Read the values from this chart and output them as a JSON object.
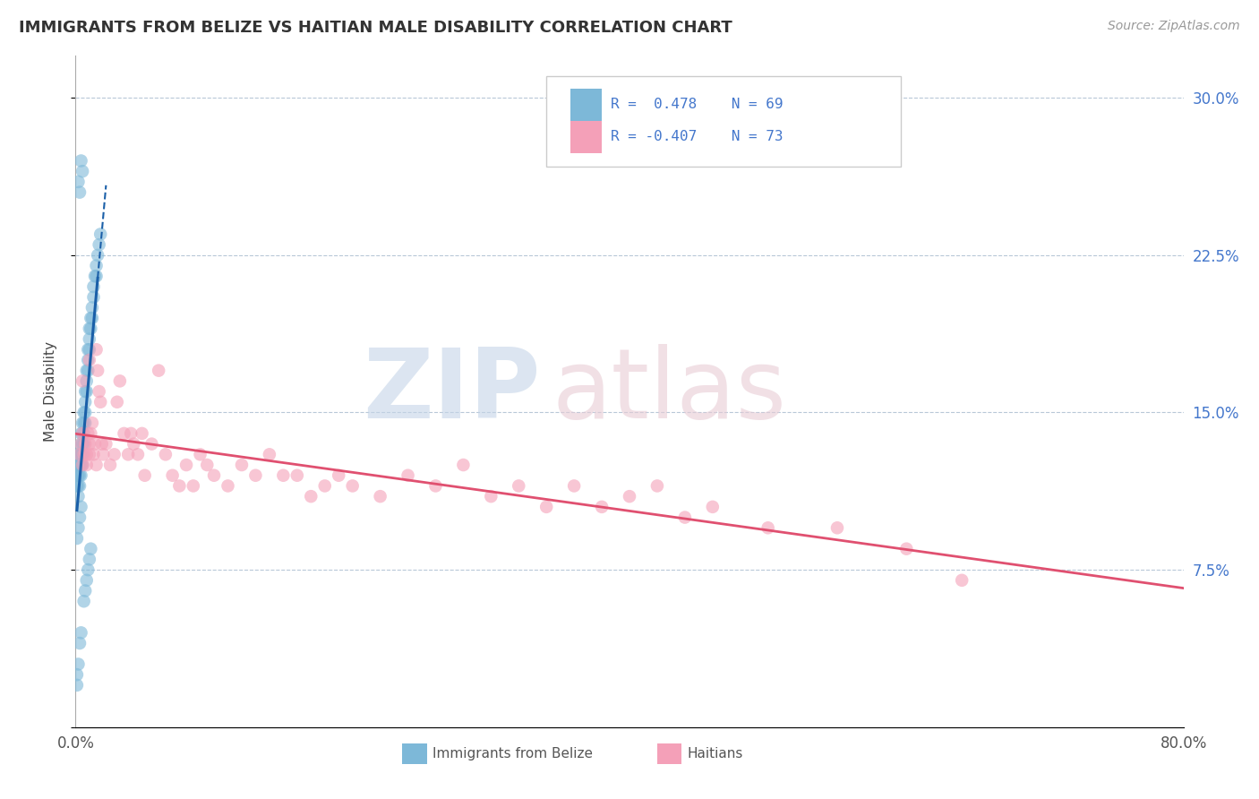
{
  "title": "IMMIGRANTS FROM BELIZE VS HAITIAN MALE DISABILITY CORRELATION CHART",
  "source": "Source: ZipAtlas.com",
  "ylabel": "Male Disability",
  "yticks": [
    0.0,
    0.075,
    0.15,
    0.225,
    0.3
  ],
  "xlim": [
    0.0,
    0.8
  ],
  "ylim": [
    0.0,
    0.32
  ],
  "blue_color": "#7db8d8",
  "pink_color": "#f4a0b8",
  "blue_line_color": "#1a5fa8",
  "pink_line_color": "#e05070",
  "legend_text1": "R =  0.478    N = 69",
  "legend_text2": "R = -0.407    N = 73",
  "blue_x": [
    0.001,
    0.001,
    0.001,
    0.002,
    0.002,
    0.002,
    0.002,
    0.003,
    0.003,
    0.003,
    0.003,
    0.004,
    0.004,
    0.004,
    0.004,
    0.004,
    0.005,
    0.005,
    0.005,
    0.005,
    0.005,
    0.006,
    0.006,
    0.006,
    0.006,
    0.007,
    0.007,
    0.007,
    0.007,
    0.008,
    0.008,
    0.008,
    0.009,
    0.009,
    0.009,
    0.01,
    0.01,
    0.01,
    0.011,
    0.011,
    0.012,
    0.012,
    0.013,
    0.013,
    0.014,
    0.015,
    0.015,
    0.016,
    0.017,
    0.018,
    0.002,
    0.003,
    0.004,
    0.005,
    0.006,
    0.007,
    0.008,
    0.009,
    0.01,
    0.011,
    0.001,
    0.002,
    0.003,
    0.004,
    0.003,
    0.004,
    0.002,
    0.001,
    0.001
  ],
  "blue_y": [
    0.12,
    0.115,
    0.13,
    0.125,
    0.12,
    0.115,
    0.11,
    0.13,
    0.125,
    0.12,
    0.115,
    0.14,
    0.135,
    0.13,
    0.125,
    0.12,
    0.145,
    0.14,
    0.135,
    0.13,
    0.125,
    0.15,
    0.145,
    0.14,
    0.135,
    0.16,
    0.155,
    0.15,
    0.145,
    0.17,
    0.165,
    0.16,
    0.18,
    0.175,
    0.17,
    0.19,
    0.185,
    0.18,
    0.195,
    0.19,
    0.2,
    0.195,
    0.21,
    0.205,
    0.215,
    0.22,
    0.215,
    0.225,
    0.23,
    0.235,
    0.26,
    0.255,
    0.27,
    0.265,
    0.06,
    0.065,
    0.07,
    0.075,
    0.08,
    0.085,
    0.09,
    0.095,
    0.1,
    0.105,
    0.04,
    0.045,
    0.03,
    0.025,
    0.02
  ],
  "pink_x": [
    0.003,
    0.004,
    0.005,
    0.005,
    0.006,
    0.007,
    0.008,
    0.008,
    0.009,
    0.01,
    0.01,
    0.011,
    0.012,
    0.013,
    0.014,
    0.015,
    0.016,
    0.017,
    0.018,
    0.019,
    0.02,
    0.022,
    0.025,
    0.028,
    0.03,
    0.032,
    0.035,
    0.038,
    0.04,
    0.042,
    0.045,
    0.048,
    0.05,
    0.055,
    0.06,
    0.065,
    0.07,
    0.075,
    0.08,
    0.085,
    0.09,
    0.095,
    0.1,
    0.11,
    0.12,
    0.13,
    0.14,
    0.15,
    0.16,
    0.17,
    0.18,
    0.19,
    0.2,
    0.22,
    0.24,
    0.26,
    0.28,
    0.3,
    0.32,
    0.34,
    0.36,
    0.38,
    0.4,
    0.42,
    0.44,
    0.46,
    0.5,
    0.55,
    0.6,
    0.64,
    0.005,
    0.01,
    0.015
  ],
  "pink_y": [
    0.13,
    0.135,
    0.14,
    0.125,
    0.13,
    0.135,
    0.13,
    0.125,
    0.14,
    0.135,
    0.13,
    0.14,
    0.145,
    0.13,
    0.135,
    0.125,
    0.17,
    0.16,
    0.155,
    0.135,
    0.13,
    0.135,
    0.125,
    0.13,
    0.155,
    0.165,
    0.14,
    0.13,
    0.14,
    0.135,
    0.13,
    0.14,
    0.12,
    0.135,
    0.17,
    0.13,
    0.12,
    0.115,
    0.125,
    0.115,
    0.13,
    0.125,
    0.12,
    0.115,
    0.125,
    0.12,
    0.13,
    0.12,
    0.12,
    0.11,
    0.115,
    0.12,
    0.115,
    0.11,
    0.12,
    0.115,
    0.125,
    0.11,
    0.115,
    0.105,
    0.115,
    0.105,
    0.11,
    0.115,
    0.1,
    0.105,
    0.095,
    0.095,
    0.085,
    0.07,
    0.165,
    0.175,
    0.18
  ]
}
